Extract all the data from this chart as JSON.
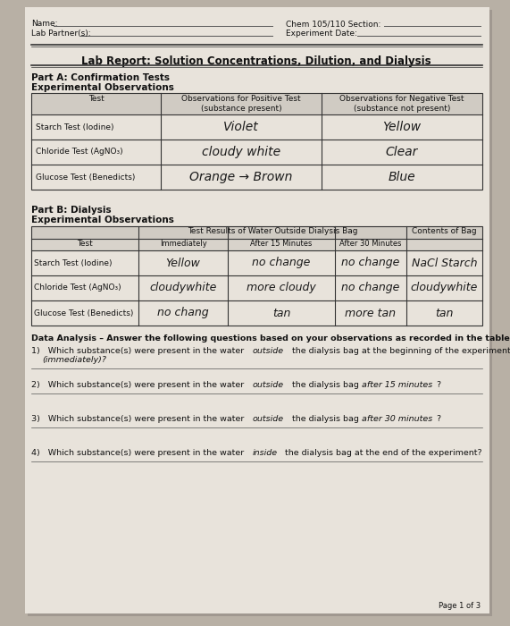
{
  "bg_color": "#b8b0a5",
  "paper_color": "#e8e3db",
  "title": "Lab Report: Solution Concentrations, Dilution, and Dialysis",
  "header_left1": "Name:",
  "header_left2": "Lab Partner(s):",
  "header_right1": "Chem 105/110 Section:",
  "header_right2": "Experiment Date:",
  "part_a_title": "Part A: Confirmation Tests",
  "part_a_subtitle": "Experimental Observations",
  "part_a_col1": "Test",
  "part_a_col2": "Observations for Positive Test\n(substance present)",
  "part_a_col3": "Observations for Negative Test\n(substance not present)",
  "part_a_rows": [
    [
      "Starch Test (Iodine)",
      "Violet",
      "Yellow"
    ],
    [
      "Chloride Test (AgNO₃)",
      "cloudy white",
      "Clear"
    ],
    [
      "Glucose Test (Benedicts)",
      "Orange → Brown",
      "Blue"
    ]
  ],
  "part_b_title": "Part B: Dialysis",
  "part_b_subtitle": "Experimental Observations",
  "part_b_col_header1": "Test Results of Water Outside Dialysis Bag",
  "part_b_col_header2": "Contents of Bag",
  "part_b_col1": "Test",
  "part_b_col2": "Immediately",
  "part_b_col3": "After 15 Minutes",
  "part_b_col4": "After 30 Minutes",
  "part_b_rows": [
    [
      "Starch Test (Iodine)",
      "Yellow",
      "no change",
      "no change",
      "NaCl Starch"
    ],
    [
      "Chloride Test (AgNO₃)",
      "cloudywhite",
      "more cloudy",
      "no change",
      "cloudywhite"
    ],
    [
      "Glucose Test (Benedicts)",
      "no chang",
      "tan",
      "more tan",
      "tan"
    ]
  ],
  "data_analysis_title": "Data Analysis – Answer the following questions based on your observations as recorded in the tables above",
  "q1": "1)   Which substance(s) were present in the water ",
  "q1_italic": "outside",
  "q1b": " the dialysis bag at the beginning of the experiment",
  "q1c": "      (immediately)?",
  "q2": "2)   Which substance(s) were present in the water ",
  "q2_italic": "outside",
  "q2b": " the dialysis bag ",
  "q2_italic2": "after 15 minutes",
  "q2c": "?",
  "q3": "3)   Which substance(s) were present in the water ",
  "q3_italic": "outside",
  "q3b": " the dialysis bag ",
  "q3_italic2": "after 30 minutes",
  "q3c": "?",
  "q4": "4)   Which substance(s) were present in the water ",
  "q4_italic": "inside",
  "q4b": " the dialysis bag at the end of the experiment?",
  "footer": "Page 1 of 3",
  "handwriting_color": "#1a1a1a",
  "print_color": "#111111",
  "line_color": "#555555",
  "table_line_color": "#333333",
  "shadow_color": "#a09890"
}
